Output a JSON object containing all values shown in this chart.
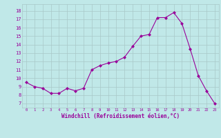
{
  "x": [
    0,
    1,
    2,
    3,
    4,
    5,
    6,
    7,
    8,
    9,
    10,
    11,
    12,
    13,
    14,
    15,
    16,
    17,
    18,
    19,
    20,
    21,
    22,
    23
  ],
  "y": [
    9.5,
    9.0,
    8.8,
    8.2,
    8.2,
    8.8,
    8.5,
    8.8,
    11.0,
    11.5,
    11.8,
    12.0,
    12.5,
    13.8,
    15.0,
    15.2,
    17.2,
    17.2,
    17.8,
    16.5,
    13.5,
    10.3,
    8.5,
    7.0
  ],
  "line_color": "#990099",
  "marker": "D",
  "marker_size": 2,
  "bg_color": "#c0e8e8",
  "grid_color": "#a8c8c8",
  "xlabel": "Windchill (Refroidissement éolien,°C)",
  "xlabel_color": "#990099",
  "ylabel_ticks": [
    7,
    8,
    9,
    10,
    11,
    12,
    13,
    14,
    15,
    16,
    17,
    18
  ],
  "xlabel_ticks": [
    0,
    1,
    2,
    3,
    4,
    5,
    6,
    7,
    8,
    9,
    10,
    11,
    12,
    13,
    14,
    15,
    16,
    17,
    18,
    19,
    20,
    21,
    22,
    23
  ],
  "xlim": [
    -0.5,
    23.5
  ],
  "ylim": [
    6.5,
    18.8
  ],
  "xtick_fontsize": 4.0,
  "ytick_fontsize": 5.0,
  "xlabel_fontsize": 5.5
}
